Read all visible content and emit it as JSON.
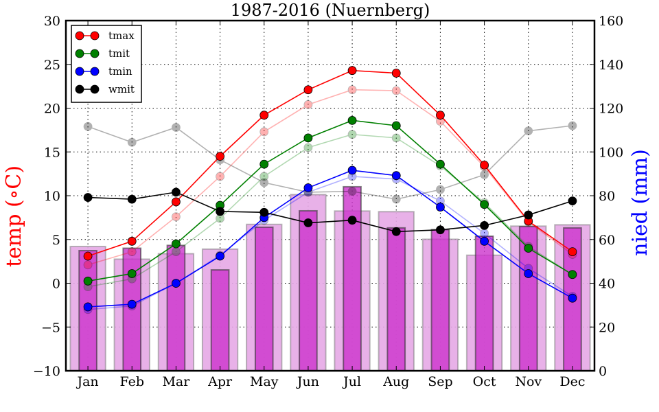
{
  "chart_data": {
    "type": "line",
    "title": "1987-2016 (Nuernberg)",
    "xlabel": "",
    "ylabel": "temp ($^\\circ$C)",
    "ylabel_display": "temp (∘C)",
    "ylabel_right": "nied (mm)",
    "categories": [
      "Jan",
      "Feb",
      "Mar",
      "Apr",
      "May",
      "Jun",
      "Jul",
      "Aug",
      "Sep",
      "Oct",
      "Nov",
      "Dec"
    ],
    "ylim": [
      -10,
      30
    ],
    "ylim_right": [
      0,
      160
    ],
    "yticks": [
      "−10",
      "−5",
      "0",
      "5",
      "10",
      "15",
      "20",
      "25",
      "30"
    ],
    "yticks_values": [
      -10,
      -5,
      0,
      5,
      10,
      15,
      20,
      25,
      30
    ],
    "yticks_right": [
      "0",
      "20",
      "40",
      "60",
      "80",
      "100",
      "120",
      "140",
      "160"
    ],
    "yticks_right_values": [
      0,
      20,
      40,
      60,
      80,
      100,
      120,
      140,
      160
    ],
    "grid": true,
    "legend_position": "top-left",
    "legend": [
      {
        "label": "tmax",
        "color": "#ff0000"
      },
      {
        "label": "tmit",
        "color": "#008000"
      },
      {
        "label": "tmin",
        "color": "#0000ff"
      },
      {
        "label": "wmit",
        "color": "#000000"
      }
    ],
    "series": [
      {
        "name": "tmax",
        "axis": "left",
        "color": "#ff0000",
        "values": [
          3.1,
          4.8,
          9.3,
          14.5,
          19.2,
          22.1,
          24.3,
          24.0,
          19.2,
          13.5,
          7.1,
          3.6
        ]
      },
      {
        "name": "tmit",
        "axis": "left",
        "color": "#008000",
        "values": [
          0.25,
          1.1,
          4.5,
          8.9,
          13.6,
          16.6,
          18.6,
          18.0,
          13.6,
          9.0,
          4.0,
          1.0
        ]
      },
      {
        "name": "tmin",
        "axis": "left",
        "color": "#0000ff",
        "values": [
          -2.7,
          -2.4,
          0.0,
          3.1,
          7.5,
          10.9,
          12.9,
          12.3,
          8.7,
          4.8,
          1.1,
          -1.7
        ]
      },
      {
        "name": "wmit",
        "axis": "left",
        "color": "#000000",
        "values": [
          9.8,
          9.6,
          10.4,
          8.2,
          8.1,
          6.9,
          7.2,
          5.9,
          6.1,
          6.6,
          7.8,
          9.4
        ]
      }
    ],
    "reference_series": [
      {
        "name": "tmax (reference)",
        "axis": "left",
        "color": "#ff0000",
        "opacity": 0.3,
        "values": [
          2.1,
          3.6,
          7.6,
          12.2,
          17.3,
          20.4,
          22.1,
          22.0,
          18.5,
          13.3,
          7.0,
          3.3
        ]
      },
      {
        "name": "tmit (reference)",
        "axis": "left",
        "color": "#008000",
        "opacity": 0.3,
        "values": [
          -0.4,
          0.5,
          3.6,
          7.4,
          12.2,
          15.5,
          17.0,
          16.6,
          13.4,
          9.2,
          4.2,
          1.0
        ]
      },
      {
        "name": "tmin (reference)",
        "axis": "left",
        "color": "#0000ff",
        "opacity": 0.3,
        "values": [
          -3.0,
          -2.6,
          0.0,
          3.2,
          7.2,
          10.4,
          12.2,
          11.9,
          9.4,
          5.7,
          1.7,
          -1.5
        ]
      },
      {
        "name": "wmit (reference)",
        "axis": "left",
        "color": "#000000",
        "opacity": 0.3,
        "values": [
          17.9,
          16.1,
          17.8,
          14.1,
          11.5,
          10.4,
          10.5,
          9.6,
          10.7,
          12.4,
          17.4,
          18.0
        ]
      }
    ],
    "bars": [
      {
        "name": "nied",
        "axis": "right",
        "color": "#cc33cc",
        "opacity": 0.75,
        "values": [
          54.9,
          56.0,
          57.3,
          46.1,
          65.6,
          73.1,
          84.1,
          65.3,
          64.5,
          61.5,
          65.9,
          65.3
        ]
      },
      {
        "name": "nied (reference)",
        "axis": "right",
        "color": "#cc33cc",
        "opacity": 0.35,
        "values": [
          56.8,
          51.0,
          53.5,
          55.6,
          66.9,
          80.5,
          73.0,
          72.7,
          60.1,
          52.8,
          66.1,
          66.7
        ]
      }
    ]
  }
}
